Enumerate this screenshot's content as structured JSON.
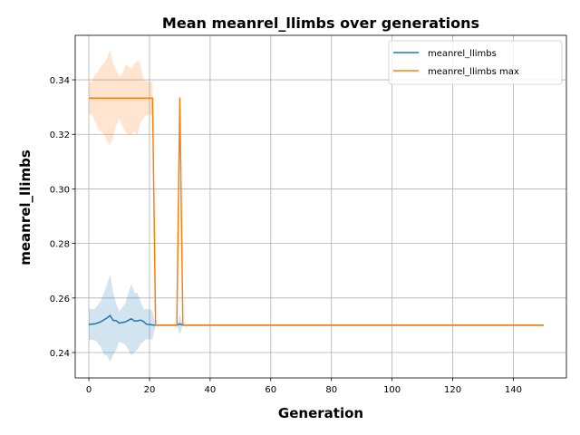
{
  "chart_data": {
    "type": "line",
    "title": "Mean meanrel_llimbs over generations",
    "xlabel": "Generation",
    "ylabel": "meanrel_llimbs",
    "xlim": [
      -4.5,
      157.5
    ],
    "ylim": [
      0.2307,
      0.3563
    ],
    "xticks": [
      0,
      20,
      40,
      60,
      80,
      100,
      120,
      140
    ],
    "yticks": [
      0.24,
      0.26,
      0.28,
      0.3,
      0.32,
      0.34
    ],
    "grid": true,
    "legend_position": "top-right",
    "series": [
      {
        "name": "meanrel_llimbs",
        "color": "#1f77b4",
        "x": [
          0,
          2,
          4,
          5,
          6,
          7,
          8,
          9,
          10,
          12,
          14,
          15,
          16,
          17,
          18,
          19,
          20,
          21,
          22,
          29,
          30,
          31,
          150
        ],
        "y": [
          0.2503,
          0.2505,
          0.2513,
          0.252,
          0.2527,
          0.2536,
          0.2518,
          0.2517,
          0.2508,
          0.2512,
          0.2524,
          0.2516,
          0.2516,
          0.2519,
          0.2514,
          0.2504,
          0.2503,
          0.2501,
          0.25,
          0.25,
          0.2505,
          0.25,
          0.25
        ],
        "band_upper": [
          0.256,
          0.256,
          0.259,
          0.262,
          0.265,
          0.2686,
          0.262,
          0.258,
          0.255,
          0.258,
          0.2653,
          0.262,
          0.2618,
          0.259,
          0.256,
          0.256,
          0.2559,
          0.2553,
          0.25,
          0.25,
          0.254,
          0.25,
          0.25
        ],
        "band_lower": [
          0.2446,
          0.2446,
          0.242,
          0.239,
          0.239,
          0.2366,
          0.239,
          0.241,
          0.244,
          0.243,
          0.239,
          0.24,
          0.241,
          0.243,
          0.244,
          0.245,
          0.2447,
          0.2449,
          0.25,
          0.25,
          0.2465,
          0.25,
          0.25
        ]
      },
      {
        "name": "meanrel_llimbs max",
        "color": "#ff7f0e",
        "x": [
          0,
          1,
          2,
          3,
          4,
          5,
          6,
          7,
          8,
          9,
          10,
          11,
          12,
          13,
          14,
          15,
          16,
          17,
          18,
          19,
          20,
          21,
          22,
          29,
          30,
          31,
          150
        ],
        "y": [
          0.3333,
          0.3333,
          0.3333,
          0.3333,
          0.3333,
          0.3333,
          0.3333,
          0.3333,
          0.3333,
          0.3333,
          0.3333,
          0.3333,
          0.3333,
          0.3333,
          0.3333,
          0.3333,
          0.3333,
          0.3333,
          0.3333,
          0.3333,
          0.3333,
          0.3333,
          0.25,
          0.25,
          0.3333,
          0.25,
          0.25
        ],
        "band_upper": [
          0.3393,
          0.3393,
          0.342,
          0.343,
          0.345,
          0.346,
          0.348,
          0.351,
          0.346,
          0.3435,
          0.3413,
          0.342,
          0.3455,
          0.345,
          0.344,
          0.346,
          0.347,
          0.346,
          0.34,
          0.3395,
          0.3393,
          0.3393,
          0.25,
          0.25,
          0.3333,
          0.25,
          0.25
        ],
        "band_lower": [
          0.3273,
          0.3273,
          0.325,
          0.322,
          0.321,
          0.32,
          0.3175,
          0.316,
          0.319,
          0.323,
          0.3257,
          0.323,
          0.321,
          0.32,
          0.32,
          0.321,
          0.32,
          0.324,
          0.326,
          0.327,
          0.3273,
          0.3273,
          0.25,
          0.25,
          0.3333,
          0.25,
          0.25
        ]
      }
    ]
  }
}
